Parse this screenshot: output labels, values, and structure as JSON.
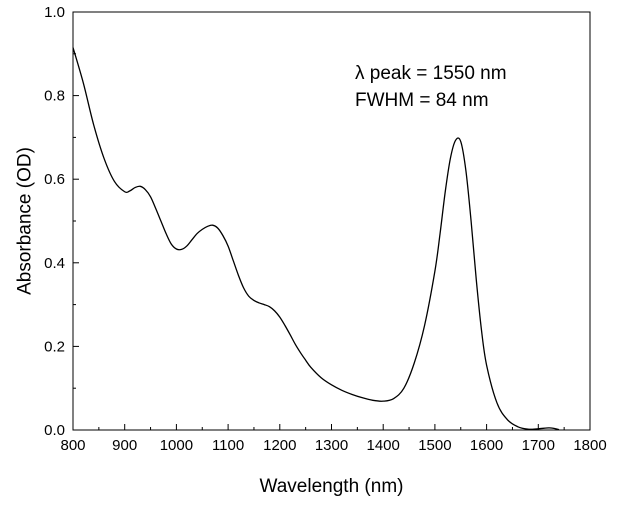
{
  "chart_data": {
    "type": "line",
    "title": "",
    "xlabel": "Wavelength (nm)",
    "ylabel": "Absorbance (OD)",
    "xlim": [
      800,
      1800
    ],
    "ylim": [
      0.0,
      1.0
    ],
    "xticks": [
      "800",
      "900",
      "1000",
      "1100",
      "1200",
      "1300",
      "1400",
      "1500",
      "1600",
      "1700",
      "1800"
    ],
    "yticks": [
      "0.0",
      "0.2",
      "0.4",
      "0.6",
      "0.8",
      "1.0"
    ],
    "grid": false,
    "annotations": [
      "λ peak = 1550 nm",
      "FWHM = 84 nm"
    ],
    "series": [
      {
        "color": "#000000",
        "x": [
          800,
          820,
          840,
          860,
          880,
          900,
          910,
          920,
          930,
          940,
          950,
          960,
          970,
          980,
          990,
          1000,
          1010,
          1020,
          1030,
          1040,
          1050,
          1060,
          1070,
          1080,
          1090,
          1100,
          1110,
          1120,
          1130,
          1140,
          1150,
          1160,
          1170,
          1180,
          1190,
          1200,
          1210,
          1220,
          1230,
          1240,
          1250,
          1260,
          1280,
          1300,
          1320,
          1340,
          1360,
          1380,
          1400,
          1420,
          1440,
          1460,
          1480,
          1500,
          1510,
          1520,
          1530,
          1540,
          1550,
          1560,
          1570,
          1580,
          1590,
          1600,
          1620,
          1640,
          1660,
          1680,
          1700,
          1720,
          1730,
          1740
        ],
        "y": [
          0.915,
          0.83,
          0.73,
          0.65,
          0.595,
          0.57,
          0.572,
          0.58,
          0.583,
          0.575,
          0.558,
          0.53,
          0.5,
          0.47,
          0.445,
          0.433,
          0.432,
          0.44,
          0.455,
          0.47,
          0.48,
          0.487,
          0.49,
          0.483,
          0.465,
          0.44,
          0.405,
          0.37,
          0.34,
          0.32,
          0.31,
          0.304,
          0.3,
          0.295,
          0.285,
          0.27,
          0.25,
          0.228,
          0.205,
          0.185,
          0.167,
          0.15,
          0.125,
          0.108,
          0.095,
          0.085,
          0.077,
          0.071,
          0.069,
          0.075,
          0.1,
          0.16,
          0.25,
          0.38,
          0.47,
          0.57,
          0.65,
          0.693,
          0.69,
          0.62,
          0.5,
          0.36,
          0.24,
          0.155,
          0.065,
          0.025,
          0.008,
          0.002,
          0.003,
          0.005,
          0.004,
          0.001
        ]
      }
    ]
  }
}
